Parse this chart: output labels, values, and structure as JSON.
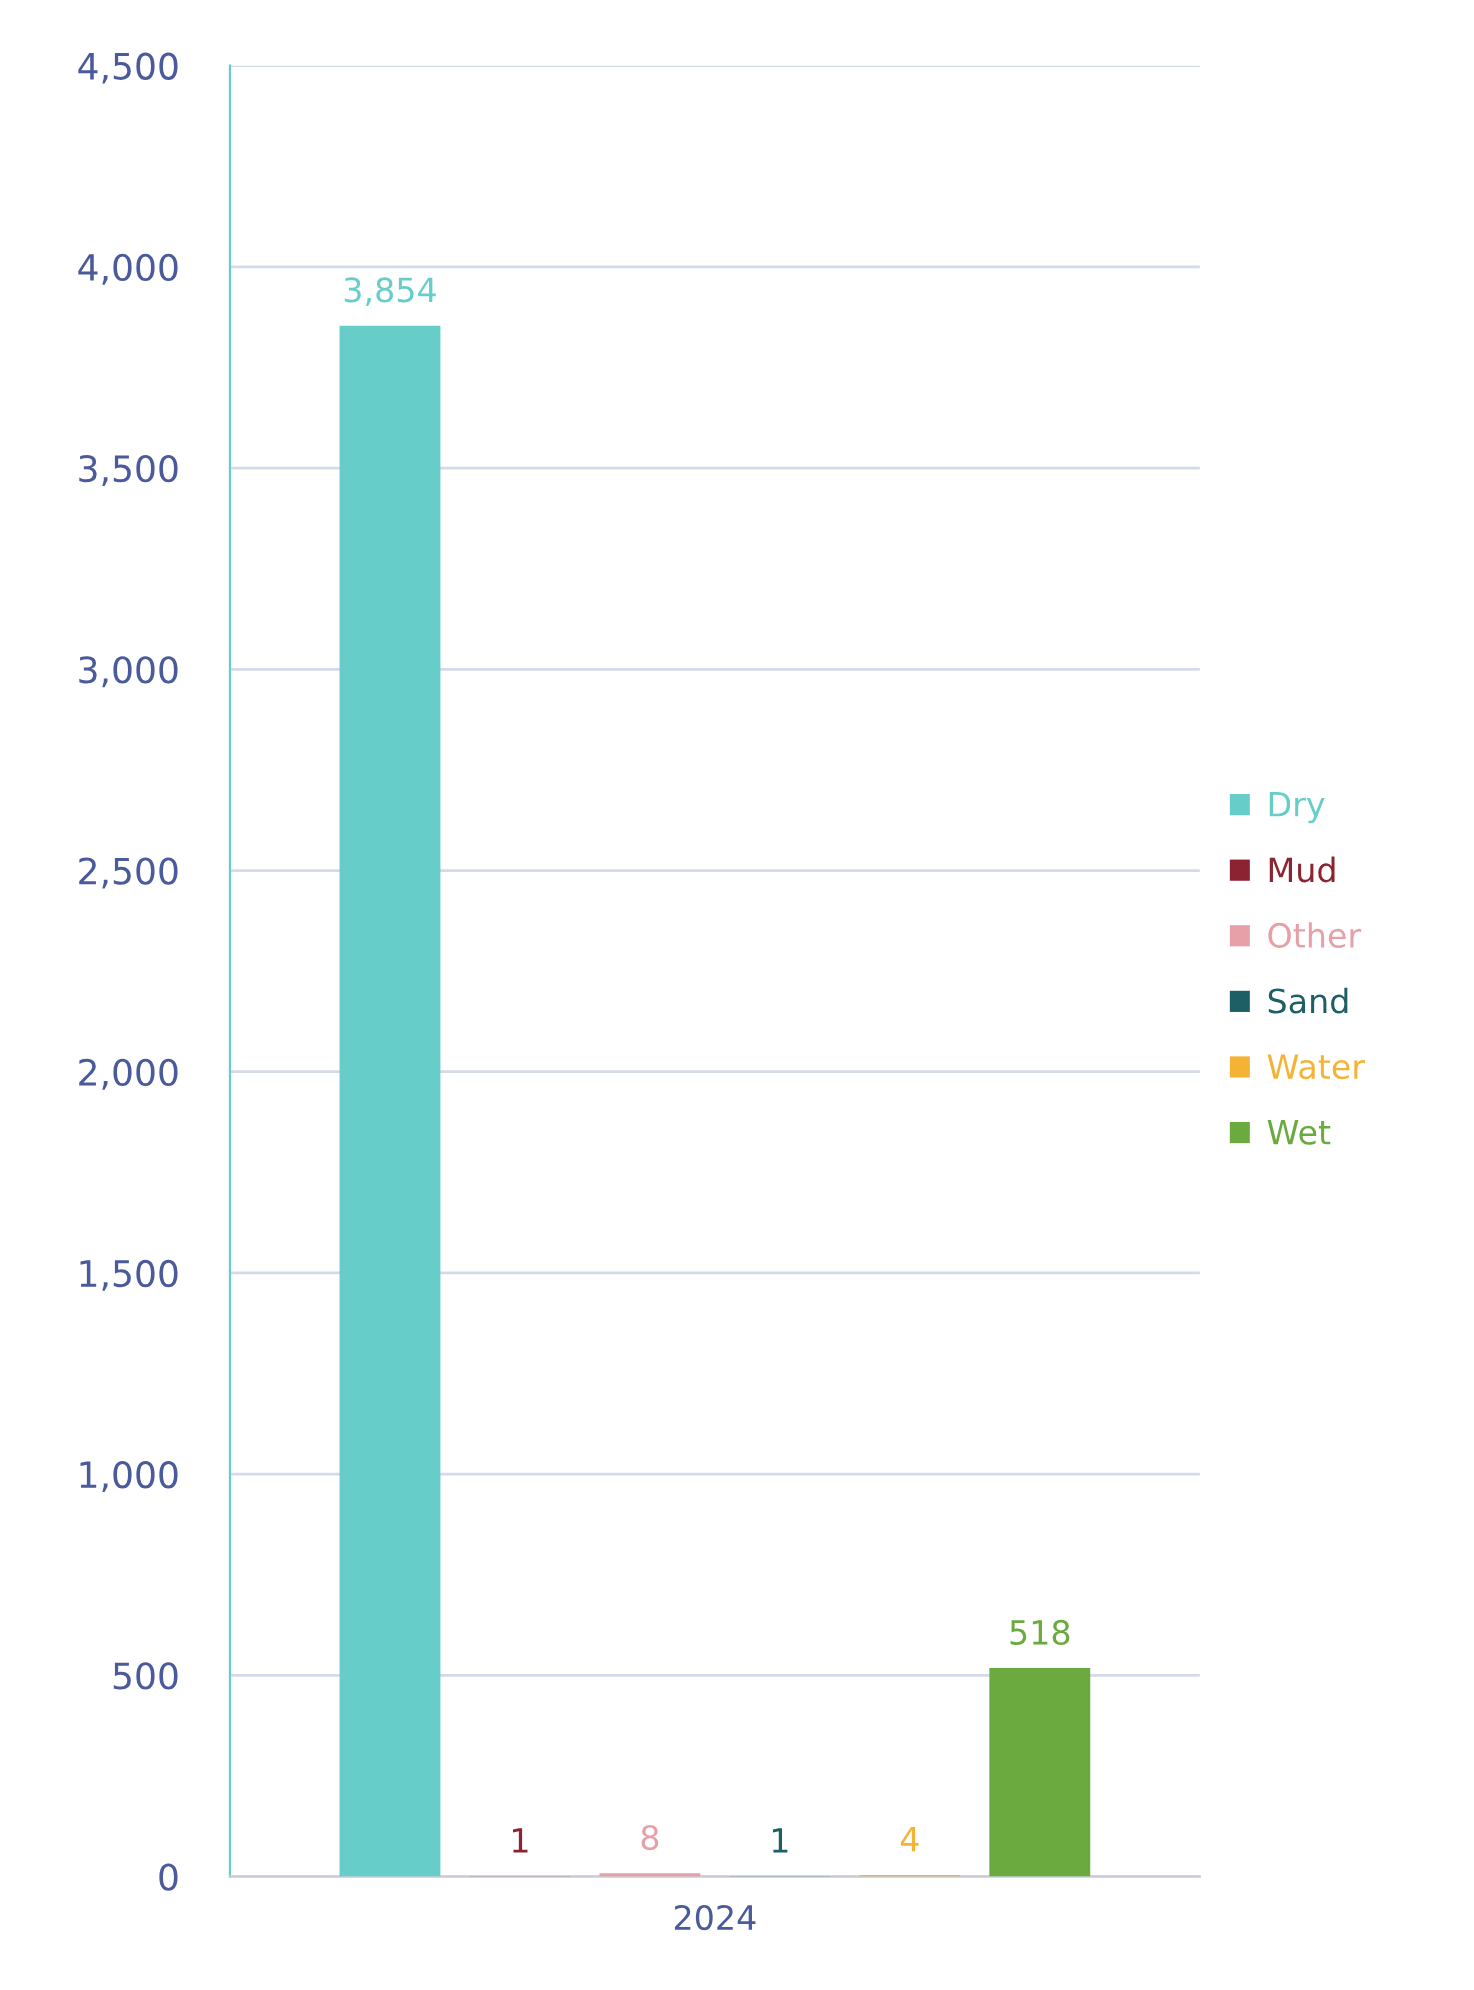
{
  "chart_data": {
    "type": "bar",
    "categories": [
      "2024"
    ],
    "series": [
      {
        "name": "Dry",
        "color": "#66cdc8",
        "values": [
          3854
        ],
        "value_labels": [
          "3,854"
        ]
      },
      {
        "name": "Mud",
        "color": "#8b2331",
        "values": [
          1
        ],
        "value_labels": [
          "1"
        ]
      },
      {
        "name": "Other",
        "color": "#e8a0a8",
        "values": [
          8
        ],
        "value_labels": [
          "8"
        ]
      },
      {
        "name": "Sand",
        "color": "#1e5f66",
        "values": [
          1
        ],
        "value_labels": [
          "1"
        ]
      },
      {
        "name": "Water",
        "color": "#f5b335",
        "values": [
          4
        ],
        "value_labels": [
          "4"
        ]
      },
      {
        "name": "Wet",
        "color": "#6aaa3f",
        "values": [
          518
        ],
        "value_labels": [
          "518"
        ]
      }
    ],
    "ylim": [
      0,
      4500
    ],
    "yticks": [
      {
        "value": 0,
        "label": "0"
      },
      {
        "value": 500,
        "label": "500"
      },
      {
        "value": 1000,
        "label": "1,000"
      },
      {
        "value": 1500,
        "label": "1,500"
      },
      {
        "value": 2000,
        "label": "2,000"
      },
      {
        "value": 2500,
        "label": "2,500"
      },
      {
        "value": 3000,
        "label": "3,000"
      },
      {
        "value": 3500,
        "label": "3,500"
      },
      {
        "value": 4000,
        "label": "4,000"
      },
      {
        "value": 4500,
        "label": "4,500"
      }
    ],
    "grid": "y",
    "legend": "right"
  }
}
